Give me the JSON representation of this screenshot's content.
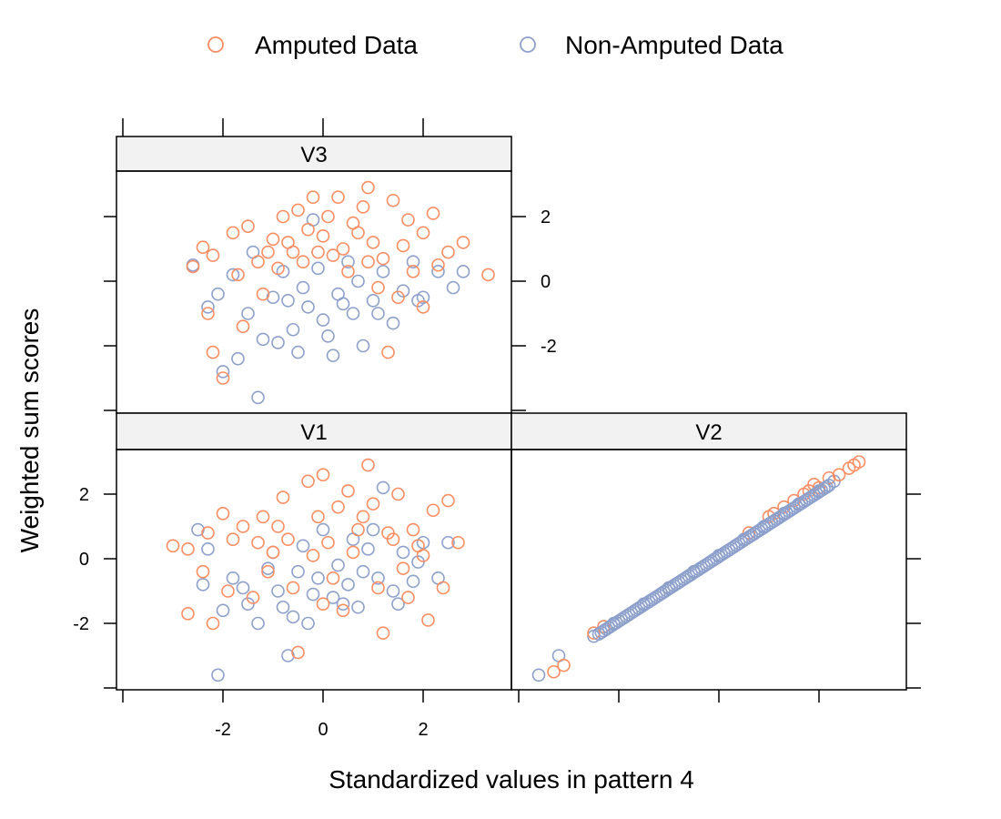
{
  "chart_data": {
    "type": "scatter",
    "layout": "trellis",
    "xlabel": "Standardized values in pattern 4",
    "ylabel": "Weighted sum scores",
    "legend": {
      "placement": "top",
      "entries": [
        {
          "name": "Amputed Data",
          "color": "#FC8D62",
          "marker": "open-circle"
        },
        {
          "name": "Non-Amputed Data",
          "color": "#8DA0CB",
          "marker": "open-circle"
        }
      ]
    },
    "x_range": [
      -4,
      4
    ],
    "y_range": [
      -4,
      4
    ],
    "x_ticks": [
      -2,
      0,
      2
    ],
    "y_ticks": [
      -2,
      0,
      2
    ],
    "colors": {
      "amputed": "#FC8D62",
      "non_amputed": "#8DA0CB",
      "strip": "#F2F2F2"
    },
    "panels": [
      {
        "strip": "V3",
        "series": [
          {
            "name": "Amputed Data",
            "points": [
              [
                -2.6,
                0.45
              ],
              [
                -2.4,
                1.05
              ],
              [
                -2.2,
                -2.2
              ],
              [
                -2.0,
                -3.0
              ],
              [
                -1.8,
                1.5
              ],
              [
                -1.5,
                1.7
              ],
              [
                -1.3,
                0.6
              ],
              [
                -1.0,
                1.3
              ],
              [
                -0.8,
                2.0
              ],
              [
                -0.6,
                0.9
              ],
              [
                -0.5,
                2.2
              ],
              [
                -0.3,
                1.6
              ],
              [
                -0.2,
                2.6
              ],
              [
                0.0,
                1.4
              ],
              [
                0.1,
                2.0
              ],
              [
                0.3,
                2.6
              ],
              [
                0.4,
                1.0
              ],
              [
                0.6,
                1.8
              ],
              [
                0.8,
                2.3
              ],
              [
                0.9,
                2.9
              ],
              [
                1.0,
                1.2
              ],
              [
                1.2,
                0.7
              ],
              [
                1.4,
                2.5
              ],
              [
                1.6,
                1.1
              ],
              [
                1.8,
                0.3
              ],
              [
                2.0,
                1.5
              ],
              [
                2.2,
                2.1
              ],
              [
                2.5,
                0.9
              ],
              [
                2.8,
                1.2
              ],
              [
                3.3,
                0.2
              ],
              [
                -2.2,
                0.8
              ],
              [
                -1.7,
                0.2
              ],
              [
                -1.2,
                -0.4
              ],
              [
                -0.9,
                0.4
              ],
              [
                -0.4,
                0.6
              ],
              [
                0.2,
                0.8
              ],
              [
                0.5,
                0.3
              ],
              [
                1.1,
                -0.2
              ],
              [
                1.5,
                -0.5
              ],
              [
                2.0,
                -0.8
              ],
              [
                1.3,
                -2.2
              ],
              [
                -2.3,
                -1.0
              ],
              [
                -1.6,
                -1.4
              ],
              [
                0.7,
                1.5
              ],
              [
                -0.1,
                0.9
              ],
              [
                1.7,
                1.9
              ],
              [
                -1.1,
                0.9
              ],
              [
                0.9,
                0.6
              ],
              [
                2.3,
                0.5
              ],
              [
                -0.7,
                1.2
              ]
            ]
          },
          {
            "name": "Non-Amputed Data",
            "points": [
              [
                -2.6,
                0.5
              ],
              [
                -2.3,
                -0.8
              ],
              [
                -2.0,
                -2.8
              ],
              [
                -1.8,
                0.2
              ],
              [
                -1.5,
                -1.0
              ],
              [
                -1.3,
                -3.6
              ],
              [
                -1.2,
                -1.8
              ],
              [
                -1.0,
                -0.5
              ],
              [
                -0.8,
                0.3
              ],
              [
                -0.6,
                -1.5
              ],
              [
                -0.5,
                -2.2
              ],
              [
                -0.3,
                -0.8
              ],
              [
                -0.1,
                0.4
              ],
              [
                0.0,
                -1.2
              ],
              [
                0.2,
                -2.3
              ],
              [
                0.3,
                -0.4
              ],
              [
                0.5,
                0.6
              ],
              [
                0.6,
                -1.0
              ],
              [
                0.8,
                -2.0
              ],
              [
                1.0,
                -0.6
              ],
              [
                1.2,
                0.3
              ],
              [
                1.4,
                -1.3
              ],
              [
                1.6,
                -0.3
              ],
              [
                1.8,
                0.6
              ],
              [
                2.0,
                -0.5
              ],
              [
                2.3,
                0.3
              ],
              [
                2.6,
                -0.2
              ],
              [
                2.8,
                0.3
              ],
              [
                -1.7,
                -2.4
              ],
              [
                -0.9,
                -1.9
              ],
              [
                0.1,
                -1.7
              ],
              [
                -0.4,
                -0.2
              ],
              [
                0.4,
                -0.7
              ],
              [
                -1.4,
                0.9
              ],
              [
                -0.2,
                1.9
              ],
              [
                0.7,
                0.0
              ],
              [
                1.1,
                -1.0
              ],
              [
                -2.1,
                -0.4
              ],
              [
                1.9,
                -0.6
              ],
              [
                -0.7,
                -0.6
              ]
            ]
          }
        ]
      },
      {
        "strip": "V1",
        "series": [
          {
            "name": "Amputed Data",
            "points": [
              [
                -3.0,
                0.4
              ],
              [
                -2.7,
                0.3
              ],
              [
                -2.7,
                -1.7
              ],
              [
                -2.4,
                -0.4
              ],
              [
                -2.2,
                -2.0
              ],
              [
                -2.0,
                1.4
              ],
              [
                -1.8,
                0.6
              ],
              [
                -1.6,
                1.0
              ],
              [
                -1.4,
                -1.2
              ],
              [
                -1.2,
                1.3
              ],
              [
                -1.0,
                0.2
              ],
              [
                -0.8,
                1.9
              ],
              [
                -0.6,
                -0.9
              ],
              [
                -0.5,
                -2.9
              ],
              [
                -0.3,
                2.4
              ],
              [
                -0.1,
                1.3
              ],
              [
                0.0,
                2.6
              ],
              [
                0.1,
                0.5
              ],
              [
                0.3,
                1.6
              ],
              [
                0.4,
                -1.6
              ],
              [
                0.5,
                2.1
              ],
              [
                0.7,
                0.9
              ],
              [
                0.9,
                2.9
              ],
              [
                1.0,
                1.7
              ],
              [
                1.2,
                -2.3
              ],
              [
                1.3,
                0.8
              ],
              [
                1.5,
                2.0
              ],
              [
                1.7,
                -1.2
              ],
              [
                1.9,
                0.4
              ],
              [
                2.1,
                -1.9
              ],
              [
                2.2,
                1.5
              ],
              [
                2.5,
                1.8
              ],
              [
                2.7,
                0.5
              ],
              [
                -1.9,
                -1.0
              ],
              [
                -1.1,
                -0.4
              ],
              [
                -0.7,
                0.6
              ],
              [
                0.2,
                -0.6
              ],
              [
                0.6,
                0.2
              ],
              [
                1.1,
                -0.9
              ],
              [
                1.6,
                -0.3
              ],
              [
                2.4,
                -0.9
              ],
              [
                0.8,
                1.3
              ],
              [
                -0.2,
                0.1
              ],
              [
                -1.3,
                0.5
              ],
              [
                1.8,
                0.9
              ],
              [
                0.0,
                -1.4
              ],
              [
                -0.9,
                1.0
              ],
              [
                2.0,
                0.1
              ],
              [
                1.4,
                0.6
              ],
              [
                -2.3,
                0.8
              ]
            ]
          },
          {
            "name": "Non-Amputed Data",
            "points": [
              [
                -2.5,
                0.9
              ],
              [
                -2.4,
                -0.8
              ],
              [
                -2.3,
                0.3
              ],
              [
                -2.1,
                -3.6
              ],
              [
                -2.0,
                -1.6
              ],
              [
                -1.8,
                -0.6
              ],
              [
                -1.5,
                -1.4
              ],
              [
                -1.3,
                -2.0
              ],
              [
                -1.1,
                -0.3
              ],
              [
                -0.9,
                -1.0
              ],
              [
                -0.7,
                -3.0
              ],
              [
                -0.6,
                -1.8
              ],
              [
                -0.4,
                0.4
              ],
              [
                -0.3,
                -2.0
              ],
              [
                -0.1,
                -0.6
              ],
              [
                0.0,
                0.9
              ],
              [
                0.2,
                -1.2
              ],
              [
                0.3,
                -0.2
              ],
              [
                0.5,
                -0.8
              ],
              [
                0.7,
                -1.5
              ],
              [
                0.9,
                0.3
              ],
              [
                1.1,
                -0.6
              ],
              [
                1.2,
                2.2
              ],
              [
                1.4,
                -1.0
              ],
              [
                1.6,
                0.2
              ],
              [
                1.8,
                -0.7
              ],
              [
                2.0,
                0.5
              ],
              [
                2.3,
                -0.6
              ],
              [
                2.5,
                0.5
              ],
              [
                -1.6,
                -0.9
              ],
              [
                -0.8,
                -1.5
              ],
              [
                0.4,
                -1.4
              ],
              [
                1.0,
                0.9
              ],
              [
                -0.2,
                -1.1
              ],
              [
                0.6,
                0.6
              ],
              [
                -1.0,
                0.2
              ],
              [
                1.5,
                -1.4
              ],
              [
                -0.5,
                -0.4
              ],
              [
                0.8,
                -0.4
              ],
              [
                1.9,
                -0.1
              ]
            ]
          }
        ]
      },
      {
        "strip": "V2",
        "series": [
          {
            "name": "Amputed Data",
            "points": [
              [
                -3.3,
                -3.5
              ],
              [
                -3.1,
                -3.3
              ],
              [
                -2.5,
                -2.3
              ],
              [
                -2.3,
                -2.1
              ],
              [
                0.6,
                0.8
              ],
              [
                1.0,
                1.3
              ],
              [
                1.3,
                1.6
              ],
              [
                1.5,
                1.8
              ],
              [
                1.7,
                2.0
              ],
              [
                1.8,
                2.1
              ],
              [
                2.0,
                2.2
              ],
              [
                2.2,
                2.5
              ],
              [
                2.4,
                2.6
              ],
              [
                2.7,
                2.9
              ],
              [
                2.8,
                3.0
              ],
              [
                2.6,
                2.8
              ],
              [
                1.9,
                2.3
              ],
              [
                1.1,
                1.4
              ]
            ]
          },
          {
            "name": "Non-Amputed Data",
            "points": [
              [
                -3.6,
                -3.6
              ],
              [
                -3.2,
                -3.0
              ],
              [
                -2.5,
                -2.4
              ],
              [
                -2.1,
                -2.0
              ],
              [
                -1.5,
                -1.4
              ],
              [
                -1.0,
                -0.9
              ],
              [
                -0.5,
                -0.4
              ],
              [
                0.0,
                0.1
              ],
              [
                0.5,
                0.6
              ],
              [
                0.9,
                1.0
              ],
              [
                1.3,
                1.4
              ],
              [
                1.6,
                1.7
              ],
              [
                2.0,
                2.1
              ],
              [
                2.3,
                2.4
              ]
            ]
          }
        ]
      }
    ]
  }
}
